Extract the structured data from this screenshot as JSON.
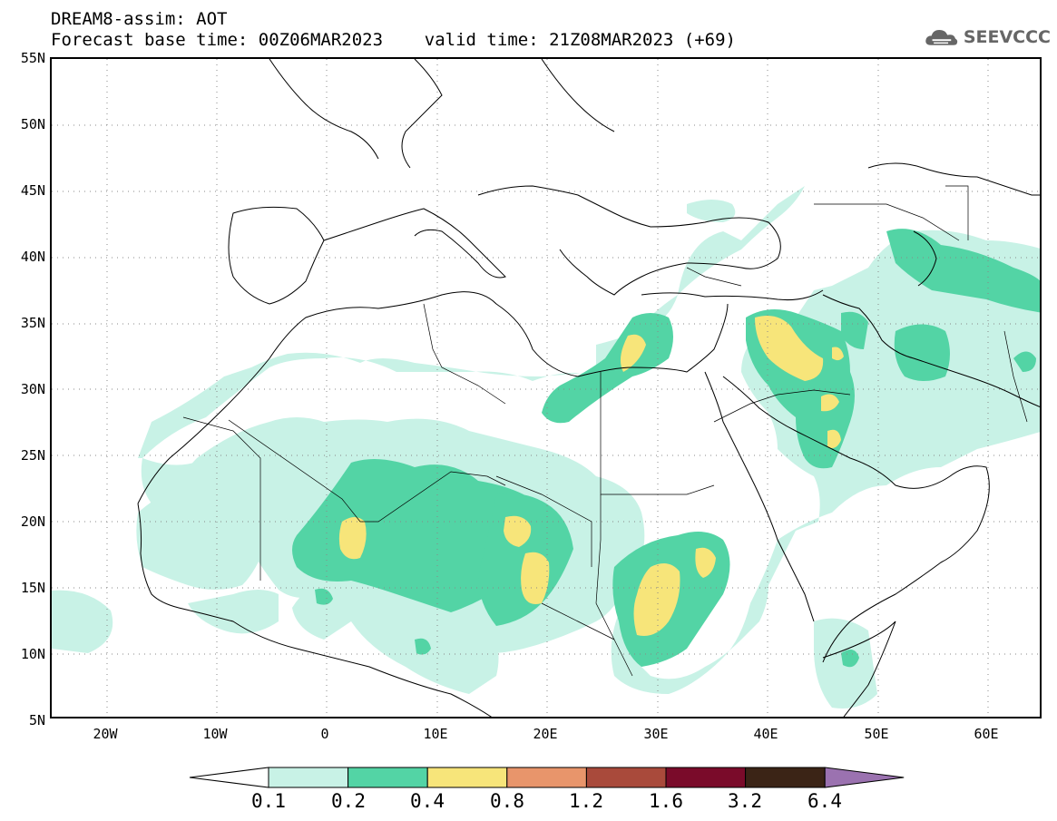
{
  "title": {
    "line1": "DREAM8-assim: AOT",
    "line2": "Forecast base time: 00Z06MAR2023    valid time: 21Z08MAR2023 (+69)"
  },
  "logo": {
    "text": "SEEVCCC",
    "icon": "cloud-icon"
  },
  "map": {
    "lat_labels": [
      "55N",
      "50N",
      "45N",
      "40N",
      "35N",
      "30N",
      "25N",
      "20N",
      "15N",
      "10N",
      "5N"
    ],
    "lon_labels": [
      "20W",
      "10W",
      "0",
      "10E",
      "20E",
      "30E",
      "40E",
      "50E",
      "60E"
    ],
    "lon_range": [
      -25,
      65
    ],
    "lat_range": [
      5,
      55
    ]
  },
  "colorbar": {
    "labels": [
      "0.1",
      "0.2",
      "0.4",
      "0.8",
      "1.2",
      "1.6",
      "3.2",
      "6.4"
    ],
    "colors": [
      "#ffffff",
      "#c8f2e6",
      "#53d4a5",
      "#f7e57a",
      "#e8956b",
      "#a94a3b",
      "#7a0b2a",
      "#3b2416",
      "#9b72b0"
    ]
  },
  "chart_data": {
    "type": "heatmap",
    "title": "DREAM8-assim: AOT",
    "variable": "AOT",
    "base_time": "00Z06MAR2023",
    "valid_time": "21Z08MAR2023",
    "forecast_hour": "+69",
    "xlim": [
      -25,
      65
    ],
    "ylim": [
      5,
      55
    ],
    "levels": [
      0.1,
      0.2,
      0.4,
      0.8,
      1.2,
      1.6,
      3.2,
      6.4
    ]
  }
}
